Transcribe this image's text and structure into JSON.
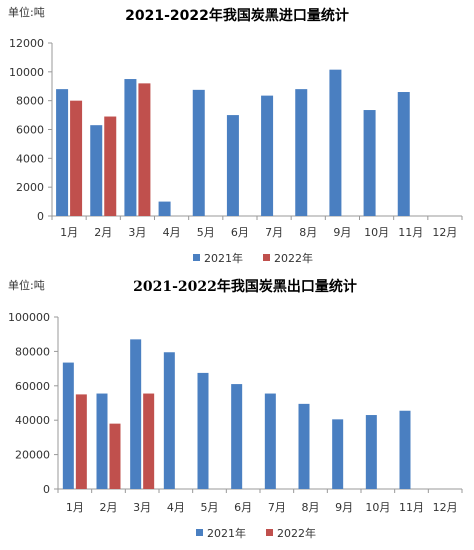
{
  "chart_data": [
    {
      "type": "bar",
      "unit_label": "单位:吨",
      "title": "2021-2022年我国炭黑进口量统计",
      "categories": [
        "1月",
        "2月",
        "3月",
        "4月",
        "5月",
        "6月",
        "7月",
        "8月",
        "9月",
        "10月",
        "11月",
        "12月"
      ],
      "ylim": [
        0,
        12000
      ],
      "yticks": [
        0,
        2000,
        4000,
        6000,
        8000,
        10000,
        12000
      ],
      "grid": false,
      "legend_position": "bottom-center",
      "series": [
        {
          "name": "2021年",
          "color": "#4a7fc1",
          "values": [
            8800,
            6300,
            9500,
            1000,
            8750,
            7000,
            8350,
            8800,
            10150,
            7350,
            8600,
            null
          ]
        },
        {
          "name": "2022年",
          "color": "#c0504d",
          "values": [
            8000,
            6900,
            9200,
            null,
            null,
            null,
            null,
            null,
            null,
            null,
            null,
            null
          ]
        }
      ]
    },
    {
      "type": "bar",
      "unit_label": "单位:吨",
      "title": "2021-2022年我国炭黑出口量统计",
      "categories": [
        "1月",
        "2月",
        "3月",
        "4月",
        "5月",
        "6月",
        "7月",
        "8月",
        "9月",
        "10月",
        "11月",
        "12月"
      ],
      "ylim": [
        0,
        100000
      ],
      "yticks": [
        0,
        20000,
        40000,
        60000,
        80000,
        100000
      ],
      "grid": false,
      "legend_position": "bottom-center",
      "series": [
        {
          "name": "2021年",
          "color": "#4a7fc1",
          "values": [
            73500,
            55500,
            87000,
            79500,
            67500,
            61000,
            55500,
            49500,
            40500,
            43000,
            45500,
            null
          ]
        },
        {
          "name": "2022年",
          "color": "#c0504d",
          "values": [
            55000,
            38000,
            55500,
            null,
            null,
            null,
            null,
            null,
            null,
            null,
            null,
            null
          ]
        }
      ]
    }
  ]
}
